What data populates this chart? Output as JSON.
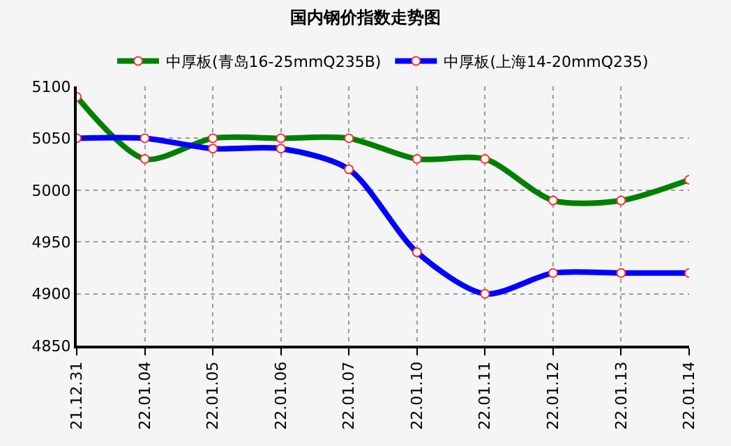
{
  "chart_data": {
    "type": "line",
    "title": "国内钢价指数走势图",
    "categories": [
      "21.12.31",
      "22.01.04",
      "22.01.05",
      "22.01.06",
      "22.01.07",
      "22.01.10",
      "22.01.11",
      "22.01.12",
      "22.01.13",
      "22.01.14"
    ],
    "series": [
      {
        "name": "中厚板(青岛16-25mmQ235B)",
        "color": "#008000",
        "values": [
          5090,
          5030,
          5050,
          5050,
          5050,
          5030,
          5030,
          4990,
          4990,
          5010
        ]
      },
      {
        "name": "中厚板(上海14-20mmQ235)",
        "color": "#0000ff",
        "values": [
          5050,
          5050,
          5040,
          5040,
          5020,
          4940,
          4900,
          4920,
          4920,
          4920
        ]
      }
    ],
    "ylim": [
      4850,
      5100
    ],
    "yticks": [
      4850,
      4900,
      4950,
      5000,
      5050,
      5100
    ],
    "grid": true,
    "legend": "top",
    "marker": "circle",
    "line_style": "solid"
  }
}
